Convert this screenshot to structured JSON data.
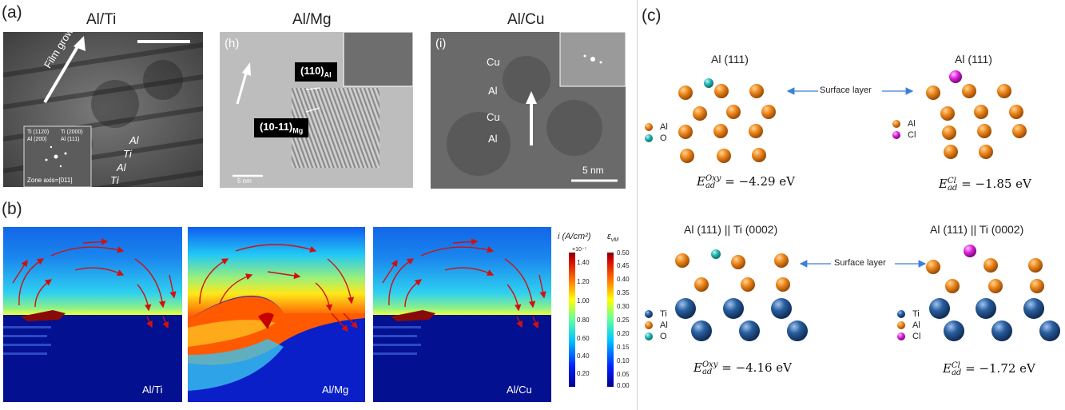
{
  "panel_a": {
    "letter": "(a)",
    "alti": {
      "title": "Al/Ti",
      "growth": "Film growth",
      "layers": [
        "Al",
        "Ti",
        "Al",
        "Ti"
      ],
      "inset": {
        "l1a": "Ti (1120)",
        "l1b": "Ti (2000)",
        "l2a": "Al (200)",
        "l2b": "Al (111)",
        "zone": "Zone axis=[011]"
      }
    },
    "almg": {
      "title": "Al/Mg",
      "sub": "(h)",
      "tag1": "(110)",
      "tag1_sub": "Al",
      "tag2": "(10-11)",
      "tag2_sub": "Mg",
      "scale": "5 nm"
    },
    "alcu": {
      "title": "Al/Cu",
      "sub": "(i)",
      "layers": [
        "Cu",
        "Al",
        "Cu",
        "Al"
      ],
      "scale": "5 nm"
    }
  },
  "panel_b": {
    "letter": "(b)",
    "maps": [
      {
        "label": "Al/Ti"
      },
      {
        "label": "Al/Mg"
      },
      {
        "label": "Al/Cu"
      }
    ],
    "cbar1": {
      "title": "i (A/cm²)",
      "exp": "×10⁻⁷",
      "ticks": [
        "1.40",
        "1.20",
        "1.00",
        "0.80",
        "0.60",
        "0.40",
        "0.20"
      ]
    },
    "cbar2": {
      "title": "ε",
      "title_sub": "vM",
      "ticks": [
        "0.50",
        "0.45",
        "0.40",
        "0.35",
        "0.30",
        "0.25",
        "0.20",
        "0.15",
        "0.10",
        "0.05",
        "0.00"
      ]
    }
  },
  "panel_c": {
    "letter": "(c)",
    "top_left": {
      "title": "Al (111)",
      "legend": [
        "Al",
        "O"
      ],
      "eq_sup": "Oxy",
      "eq_val": "= −4.29 eV"
    },
    "top_right": {
      "title": "Al (111)",
      "legend": [
        "Al",
        "Cl"
      ],
      "eq_sup": "Cl",
      "eq_val": "= −1.85 eV"
    },
    "top_arrow": "Surface layer",
    "bot_left": {
      "title": "Al (111) || Ti (0002)",
      "legend": [
        "Ti",
        "Al",
        "O"
      ],
      "eq_sup": "Oxy",
      "eq_val": "= −4.16 eV"
    },
    "bot_right": {
      "title": "Al (111) || Ti (0002)",
      "legend": [
        "Ti",
        "Al",
        "Cl"
      ],
      "eq_sup": "Cl",
      "eq_val": "= −1.72 eV"
    },
    "bot_arrow": "Surface layer",
    "eq_base": "E",
    "eq_sub": "ad",
    "colors": {
      "al": "#e07a12",
      "ti": "#1f4f8c",
      "o": "#21b3b3",
      "cl": "#d61fd6"
    }
  }
}
